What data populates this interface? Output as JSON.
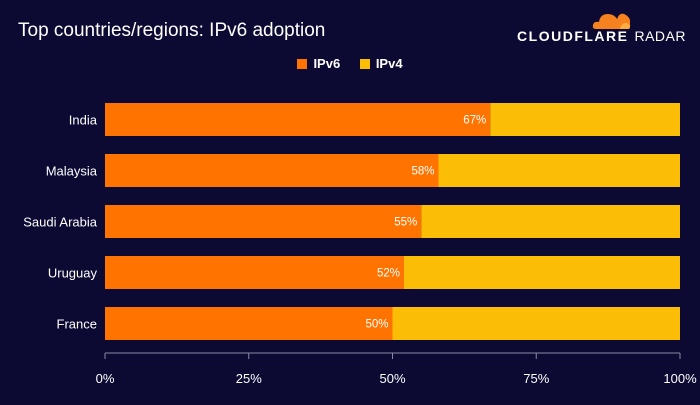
{
  "title": "Top countries/regions: IPv6 adoption",
  "brand": {
    "name": "CLOUDFLARE",
    "product": "RADAR"
  },
  "colors": {
    "background": "#0c0a33",
    "ipv6": "#ff7400",
    "ipv4": "#fbbd05",
    "brand_cloud": "#f6821f"
  },
  "chart_data": {
    "type": "bar",
    "orientation": "horizontal",
    "stacked": true,
    "categories": [
      "India",
      "Malaysia",
      "Saudi Arabia",
      "Uruguay",
      "France"
    ],
    "series": [
      {
        "name": "IPv6",
        "values": [
          67,
          58,
          55,
          52,
          50
        ],
        "labels": [
          "67%",
          "58%",
          "55%",
          "52%",
          "50%"
        ]
      },
      {
        "name": "IPv4",
        "values": [
          33,
          42,
          45,
          48,
          50
        ]
      }
    ],
    "xlim": [
      0,
      100
    ],
    "xticks": [
      0,
      25,
      50,
      75,
      100
    ],
    "xtick_labels": [
      "0%",
      "25%",
      "50%",
      "75%",
      "100%"
    ],
    "legend_position": "top-center",
    "grid": false
  }
}
